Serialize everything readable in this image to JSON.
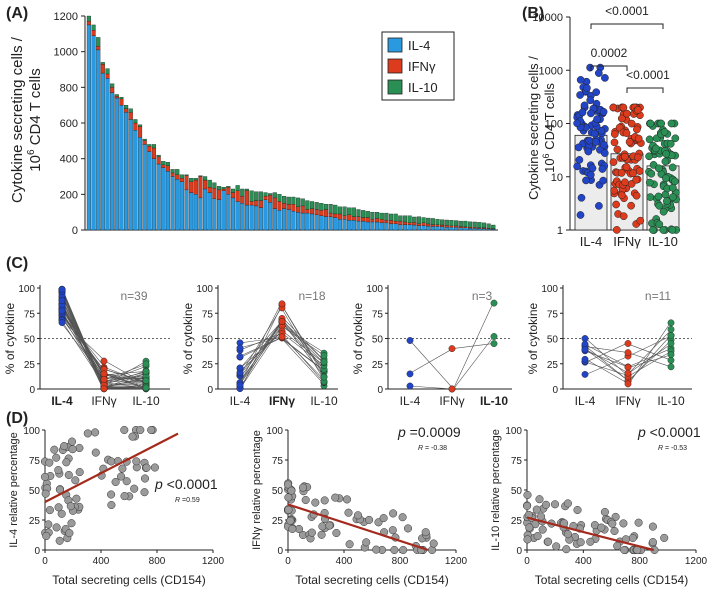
{
  "colors": {
    "il4": "#2a9ae0",
    "ifng": "#dc3b1d",
    "il10": "#2a8f55",
    "il4_dot": "#2245c8",
    "reg_line": "#a32a1c",
    "grey_dot": "#9a9a9a",
    "bar_fill": "#ececec"
  },
  "panel_labels": {
    "a": "(A)",
    "b": "(B)",
    "c": "(C)",
    "d": "(D)"
  },
  "chart_data": [
    {
      "id": "A",
      "type": "bar",
      "stacked": true,
      "ylabel_line1": "Cytokine secreting cells /",
      "ylabel_line2_pre": "10",
      "ylabel_line2_sup": "6",
      "ylabel_line2_post": " CD4 T cells",
      "ylim": [
        0,
        1200
      ],
      "yticks": [
        "0",
        "200",
        "400",
        "600",
        "800",
        "1000",
        "1200"
      ],
      "legend": [
        "IL-4",
        "IFNγ",
        "IL-10"
      ],
      "legend_position": "top-right",
      "series_order": [
        "IL-4",
        "IFNγ",
        "IL-10"
      ],
      "il4": [
        1150,
        1090,
        1010,
        880,
        850,
        770,
        740,
        700,
        660,
        620,
        560,
        520,
        480,
        440,
        400,
        370,
        350,
        330,
        300,
        285,
        270,
        225,
        210,
        200,
        180,
        230,
        210,
        175,
        170,
        220,
        200,
        180,
        160,
        150,
        140,
        140,
        135,
        125,
        170,
        155,
        120,
        110,
        120,
        115,
        105,
        100,
        95,
        95,
        90,
        85,
        80,
        75,
        75,
        70,
        60,
        60,
        55,
        55,
        50,
        50,
        45,
        45,
        45,
        40,
        40,
        35,
        35,
        30,
        30,
        30,
        28,
        25,
        25,
        22,
        20,
        20,
        18,
        16,
        15,
        15,
        12,
        12,
        10,
        10,
        8,
        8,
        6,
        5
      ],
      "ifng": [
        20,
        30,
        20,
        50,
        25,
        30,
        10,
        35,
        20,
        40,
        40,
        60,
        20,
        30,
        60,
        40,
        15,
        30,
        20,
        25,
        20,
        80,
        60,
        80,
        120,
        50,
        30,
        60,
        55,
        10,
        40,
        30,
        60,
        40,
        80,
        20,
        30,
        40,
        20,
        40,
        60,
        50,
        30,
        30,
        40,
        30,
        40,
        20,
        30,
        30,
        30,
        40,
        20,
        20,
        30,
        20,
        30,
        20,
        25,
        20,
        25,
        15,
        20,
        20,
        15,
        20,
        15,
        20,
        15,
        10,
        15,
        10,
        15,
        12,
        10,
        10,
        10,
        10,
        8,
        8,
        8,
        6,
        6,
        5,
        5,
        4,
        4,
        3
      ],
      "il10": [
        30,
        30,
        50,
        10,
        30,
        20,
        10,
        10,
        20,
        20,
        20,
        10,
        10,
        10,
        20,
        10,
        20,
        20,
        20,
        30,
        20,
        5,
        20,
        10,
        5,
        20,
        40,
        30,
        20,
        10,
        5,
        20,
        30,
        40,
        10,
        60,
        50,
        50,
        20,
        10,
        30,
        40,
        40,
        40,
        40,
        50,
        40,
        50,
        40,
        40,
        40,
        30,
        50,
        50,
        40,
        50,
        40,
        50,
        40,
        40,
        35,
        40,
        35,
        35,
        40,
        35,
        40,
        30,
        35,
        40,
        30,
        40,
        30,
        33,
        35,
        30,
        30,
        30,
        32,
        30,
        30,
        32,
        30,
        30,
        30,
        28,
        25,
        20
      ]
    },
    {
      "id": "B",
      "type": "scatter",
      "scale": "log",
      "ylabel_line1": "Cytokine secreting cells /",
      "ylabel_line2_pre": "10",
      "ylabel_line2_sup": "6",
      "ylabel_line2_post": " CD4 T cells",
      "ylim": [
        1,
        10000
      ],
      "yticks": [
        "1",
        "10",
        "100",
        "1000",
        "10000"
      ],
      "categories": [
        "IL-4",
        "IFNγ",
        "IL-10"
      ],
      "bar_values": [
        60,
        27,
        16
      ],
      "comparisons": [
        {
          "from": "IL-4",
          "to": "IFNγ",
          "label": "0.0002"
        },
        {
          "from": "IFNγ",
          "to": "IL-10",
          "label": "<0.0001"
        },
        {
          "from": "IL-4",
          "to": "IL-10",
          "label": "<0.0001"
        }
      ]
    },
    {
      "id": "C",
      "type": "line",
      "ylabel": "% of cytokine",
      "ylim": [
        0,
        100
      ],
      "yticks": [
        "0",
        "25",
        "50",
        "75",
        "100"
      ],
      "reference_line": 50,
      "categories": [
        "IL-4",
        "IFNγ",
        "IL-10"
      ],
      "subplots": [
        {
          "n_label": "n=39",
          "bold_index": 0,
          "lines": 39
        },
        {
          "n_label": "n=18",
          "bold_index": 1,
          "lines": 18
        },
        {
          "n_label": "n=3",
          "bold_index": 2,
          "lines": 3
        },
        {
          "n_label": "n=11",
          "bold_index": -1,
          "lines": 11
        }
      ]
    },
    {
      "id": "D",
      "type": "scatter",
      "xlabel": "Total secreting cells (CD154)",
      "xlim": [
        0,
        1200
      ],
      "ylim": [
        0,
        100
      ],
      "xticks": [
        "0",
        "400",
        "800",
        "1200"
      ],
      "yticks": [
        "0",
        "25",
        "50",
        "75",
        "100"
      ],
      "subplots": [
        {
          "ylabel": "IL-4 relative percentage",
          "p_label": "p",
          "p_value": "<0.0001",
          "r_label": "R",
          "r_value": "=0.59",
          "fit": [
            [
              0,
              40
            ],
            [
              950,
              97
            ]
          ]
        },
        {
          "ylabel": "IFNγ relative percentage",
          "p_label": "p",
          "p_value": "=0.0009",
          "r_label": "R",
          "r_value": "= -0.38",
          "fit": [
            [
              0,
              38
            ],
            [
              1000,
              0
            ]
          ]
        },
        {
          "ylabel": "IL-10 relative percentage",
          "p_label": "p",
          "p_value": "<0.0001",
          "r_label": "R",
          "r_value": "= -0.53",
          "fit": [
            [
              0,
              27
            ],
            [
              900,
              0
            ]
          ]
        }
      ]
    }
  ]
}
